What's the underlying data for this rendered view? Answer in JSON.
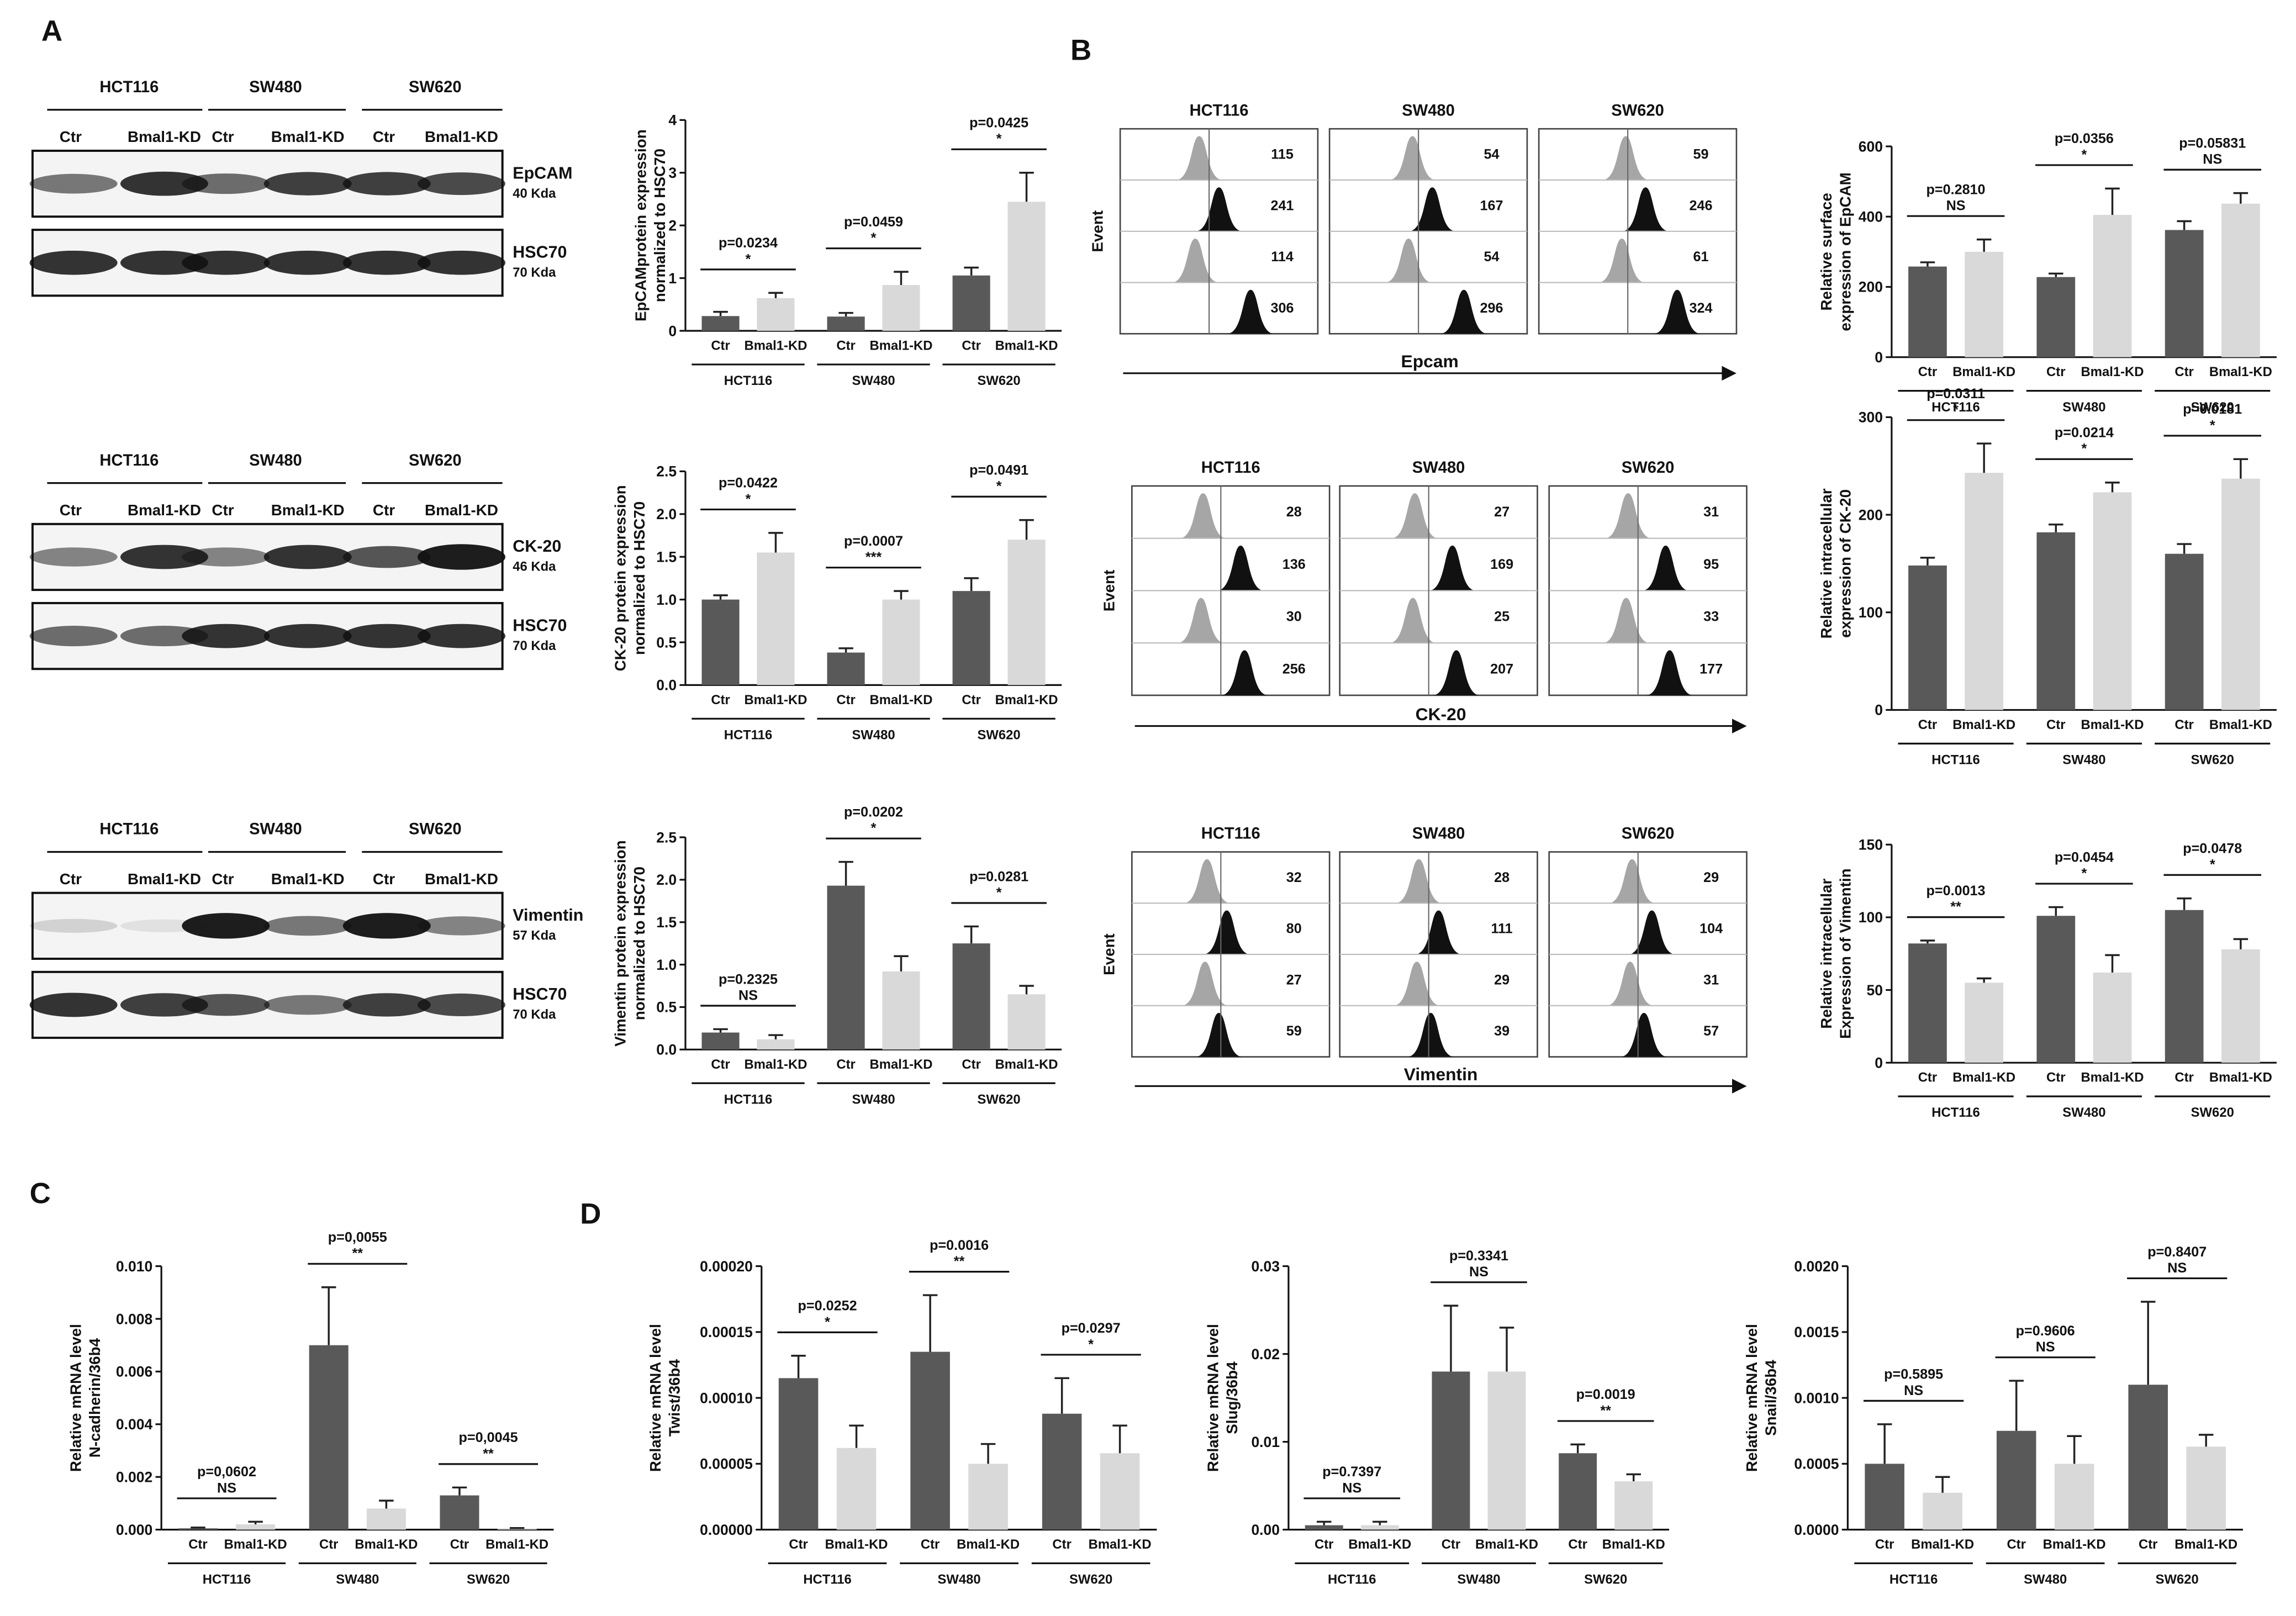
{
  "panel_labels": [
    "A",
    "B",
    "C",
    "D"
  ],
  "blots": [
    {
      "groups": [
        "HCT116",
        "SW480",
        "SW620"
      ],
      "lanes": [
        "Ctr",
        "Bmal1-KD",
        "Ctr",
        "Bmal1-KD",
        "Ctr",
        "Bmal1-KD"
      ],
      "rows": [
        {
          "protein": "EpCAM",
          "size": "40 Kda"
        },
        {
          "protein": "HSC70",
          "size": "70 Kda"
        }
      ]
    },
    {
      "groups": [
        "HCT116",
        "SW480",
        "SW620"
      ],
      "lanes": [
        "Ctr",
        "Bmal1-KD",
        "Ctr",
        "Bmal1-KD",
        "Ctr",
        "Bmal1-KD"
      ],
      "rows": [
        {
          "protein": "CK-20",
          "size": "46 Kda"
        },
        {
          "protein": "HSC70",
          "size": "70 Kda"
        }
      ]
    },
    {
      "groups": [
        "HCT116",
        "SW480",
        "SW620"
      ],
      "lanes": [
        "Ctr",
        "Bmal1-KD",
        "Ctr",
        "Bmal1-KD",
        "Ctr",
        "Bmal1-KD"
      ],
      "rows": [
        {
          "protein": "Vimentin",
          "size": "57 Kda"
        },
        {
          "protein": "HSC70",
          "size": "70 Kda"
        }
      ]
    }
  ],
  "flow": [
    {
      "groups": [
        "HCT116",
        "SW480",
        "SW620"
      ],
      "ylabel": "Event",
      "xlabel": "Epcam",
      "numbers": [
        [
          115,
          241,
          114,
          306
        ],
        [
          54,
          167,
          54,
          296
        ],
        [
          59,
          246,
          61,
          324
        ]
      ]
    },
    {
      "groups": [
        "HCT116",
        "SW480",
        "SW620"
      ],
      "ylabel": "Event",
      "xlabel": "CK-20",
      "numbers": [
        [
          28,
          136,
          30,
          256
        ],
        [
          27,
          169,
          25,
          207
        ],
        [
          31,
          95,
          33,
          177
        ]
      ]
    },
    {
      "groups": [
        "HCT116",
        "SW480",
        "SW620"
      ],
      "ylabel": "Event",
      "xlabel": "Vimentin",
      "numbers": [
        [
          32,
          80,
          27,
          59
        ],
        [
          28,
          111,
          29,
          39
        ],
        [
          29,
          104,
          31,
          57
        ]
      ]
    }
  ],
  "chart_data": [
    {
      "type": "bar",
      "ylabel": [
        "EpCAMprotein expression",
        "normalized to HSC70"
      ],
      "categories": [
        "Ctr",
        "Bmal1-KD",
        "Ctr",
        "Bmal1-KD",
        "Ctr",
        "Bmal1-KD"
      ],
      "groups": [
        "HCT116",
        "SW480",
        "SW620"
      ],
      "values": [
        0.28,
        0.62,
        0.27,
        0.87,
        1.05,
        2.45
      ],
      "errors": [
        0.08,
        0.1,
        0.07,
        0.25,
        0.15,
        0.55
      ],
      "colors": [
        "#595959",
        "#d9d9d9"
      ],
      "ylim": [
        0,
        4
      ],
      "yticks": [
        0,
        1,
        2,
        3,
        4
      ],
      "annotations": [
        {
          "p": "p=0.0234",
          "sig": "*"
        },
        {
          "p": "p=0.0459",
          "sig": "*"
        },
        {
          "p": "p=0.0425",
          "sig": "*"
        }
      ]
    },
    {
      "type": "bar",
      "ylabel": [
        "CK-20 protein expression",
        "normalized to HSC70"
      ],
      "categories": [
        "Ctr",
        "Bmal1-KD",
        "Ctr",
        "Bmal1-KD",
        "Ctr",
        "Bmal1-KD"
      ],
      "groups": [
        "HCT116",
        "SW480",
        "SW620"
      ],
      "values": [
        1.0,
        1.55,
        0.38,
        1.0,
        1.1,
        1.7
      ],
      "errors": [
        0.05,
        0.23,
        0.05,
        0.1,
        0.15,
        0.23
      ],
      "colors": [
        "#595959",
        "#d9d9d9"
      ],
      "ylim": [
        0,
        2.5
      ],
      "yticks": [
        {
          "value": 0,
          "label": "0.0"
        },
        {
          "value": 0.5,
          "label": "0.5"
        },
        {
          "value": 1,
          "label": "1.0"
        },
        {
          "value": 1.5,
          "label": "1.5"
        },
        {
          "value": 2,
          "label": "2.0"
        },
        {
          "value": 2.5,
          "label": "2.5"
        }
      ],
      "annotations": [
        {
          "p": "p=0.0422",
          "sig": "*"
        },
        {
          "p": "p=0.0007",
          "sig": "***"
        },
        {
          "p": "p=0.0491",
          "sig": "*"
        }
      ]
    },
    {
      "type": "bar",
      "ylabel": [
        "Vimentin protein expression",
        "normalized to HSC70"
      ],
      "categories": [
        "Ctr",
        "Bmal1-KD",
        "Ctr",
        "Bmal1-KD",
        "Ctr",
        "Bmal1-KD"
      ],
      "groups": [
        "HCT116",
        "SW480",
        "SW620"
      ],
      "values": [
        0.2,
        0.12,
        1.93,
        0.92,
        1.25,
        0.65
      ],
      "errors": [
        0.04,
        0.05,
        0.28,
        0.18,
        0.2,
        0.1
      ],
      "colors": [
        "#595959",
        "#d9d9d9"
      ],
      "ylim": [
        0,
        2.5
      ],
      "yticks": [
        {
          "value": 0,
          "label": "0.0"
        },
        {
          "value": 0.5,
          "label": "0.5"
        },
        {
          "value": 1,
          "label": "1.0"
        },
        {
          "value": 1.5,
          "label": "1.5"
        },
        {
          "value": 2,
          "label": "2.0"
        },
        {
          "value": 2.5,
          "label": "2.5"
        }
      ],
      "annotations": [
        {
          "p": "p=0.2325",
          "sig": "NS"
        },
        {
          "p": "p=0.0202",
          "sig": "*"
        },
        {
          "p": "p=0.0281",
          "sig": "*"
        }
      ]
    },
    {
      "type": "bar",
      "ylabel": [
        "Relative surface",
        "expression of EpCAM"
      ],
      "categories": [
        "Ctr",
        "Bmal1-KD",
        "Ctr",
        "Bmal1-KD",
        "Ctr",
        "Bmal1-KD"
      ],
      "groups": [
        "HCT116",
        "SW480",
        "SW620"
      ],
      "values": [
        258,
        300,
        228,
        405,
        362,
        437
      ],
      "errors": [
        12,
        35,
        10,
        75,
        25,
        30
      ],
      "colors": [
        "#595959",
        "#d9d9d9"
      ],
      "ylim": [
        0,
        600
      ],
      "yticks": [
        0,
        200,
        400,
        600
      ],
      "annotations": [
        {
          "p": "p=0.2810",
          "sig": "NS"
        },
        {
          "p": "p=0.0356",
          "sig": "*"
        },
        {
          "p": "p=0.05831",
          "sig": "NS"
        }
      ]
    },
    {
      "type": "bar",
      "ylabel": [
        "Relative intracellular",
        "expression of CK-20"
      ],
      "categories": [
        "Ctr",
        "Bmal1-KD",
        "Ctr",
        "Bmal1-KD",
        "Ctr",
        "Bmal1-KD"
      ],
      "groups": [
        "HCT116",
        "SW480",
        "SW620"
      ],
      "values": [
        148,
        243,
        182,
        223,
        160,
        237
      ],
      "errors": [
        8,
        30,
        8,
        10,
        10,
        20
      ],
      "colors": [
        "#595959",
        "#d9d9d9"
      ],
      "ylim": [
        0,
        300
      ],
      "yticks": [
        0,
        100,
        200,
        300
      ],
      "annotations": [
        {
          "p": "p=0.0311",
          "sig": "*"
        },
        {
          "p": "p=0.0214",
          "sig": "*"
        },
        {
          "p": "p=0.0181",
          "sig": "*"
        }
      ]
    },
    {
      "type": "bar",
      "ylabel": [
        "Relative intracellular",
        "Expression of Vimentin"
      ],
      "categories": [
        "Ctr",
        "Bmal1-KD",
        "Ctr",
        "Bmal1-KD",
        "Ctr",
        "Bmal1-KD"
      ],
      "groups": [
        "HCT116",
        "SW480",
        "SW620"
      ],
      "values": [
        82,
        55,
        101,
        62,
        105,
        78
      ],
      "errors": [
        2,
        3,
        6,
        12,
        8,
        7
      ],
      "colors": [
        "#595959",
        "#d9d9d9"
      ],
      "ylim": [
        0,
        150
      ],
      "yticks": [
        0,
        50,
        100,
        150
      ],
      "annotations": [
        {
          "p": "p=0.0013",
          "sig": "**"
        },
        {
          "p": "p=0.0454",
          "sig": "*"
        },
        {
          "p": "p=0.0478",
          "sig": "*"
        }
      ]
    },
    {
      "type": "bar",
      "ylabel": [
        "Relative mRNA level",
        "N-cadherin/36b4"
      ],
      "categories": [
        "Ctr",
        "Bmal1-KD",
        "Ctr",
        "Bmal1-KD",
        "Ctr",
        "Bmal1-KD"
      ],
      "groups": [
        "HCT116",
        "SW480",
        "SW620"
      ],
      "values": [
        5e-05,
        0.0002,
        0.007,
        0.0008,
        0.0013,
        3e-05
      ],
      "errors": [
        3e-05,
        0.0001,
        0.0022,
        0.0003,
        0.0003,
        3e-05
      ],
      "colors": [
        "#595959",
        "#d9d9d9"
      ],
      "ylim": [
        0,
        0.01
      ],
      "yticks": [
        {
          "value": 0,
          "label": "0.000"
        },
        {
          "value": 0.002,
          "label": "0.002"
        },
        {
          "value": 0.004,
          "label": "0.004"
        },
        {
          "value": 0.006,
          "label": "0.006"
        },
        {
          "value": 0.008,
          "label": "0.008"
        },
        {
          "value": 0.01,
          "label": "0.010"
        }
      ],
      "annotations": [
        {
          "p": "p=0,0602",
          "sig": "NS"
        },
        {
          "p": "p=0,0055",
          "sig": "**"
        },
        {
          "p": "p=0,0045",
          "sig": "**"
        }
      ]
    },
    {
      "type": "bar",
      "ylabel": [
        "Relative mRNA level",
        "Twist/36b4"
      ],
      "categories": [
        "Ctr",
        "Bmal1-KD",
        "Ctr",
        "Bmal1-KD",
        "Ctr",
        "Bmal1-KD"
      ],
      "groups": [
        "HCT116",
        "SW480",
        "SW620"
      ],
      "values": [
        0.000115,
        6.2e-05,
        0.000135,
        5e-05,
        8.8e-05,
        5.8e-05
      ],
      "errors": [
        1.7e-05,
        1.7e-05,
        4.3e-05,
        1.5e-05,
        2.7e-05,
        2.1e-05
      ],
      "colors": [
        "#595959",
        "#d9d9d9"
      ],
      "ylim": [
        0,
        0.0002
      ],
      "yticks": [
        {
          "value": 0,
          "label": "0.00000"
        },
        {
          "value": 5e-05,
          "label": "0.00005"
        },
        {
          "value": 0.0001,
          "label": "0.00010"
        },
        {
          "value": 0.00015,
          "label": "0.00015"
        },
        {
          "value": 0.0002,
          "label": "0.00020"
        }
      ],
      "annotations": [
        {
          "p": "p=0.0252",
          "sig": "*"
        },
        {
          "p": "p=0.0016",
          "sig": "**"
        },
        {
          "p": "p=0.0297",
          "sig": "*"
        }
      ]
    },
    {
      "type": "bar",
      "ylabel": [
        "Relative mRNA level",
        "Slug/36b4"
      ],
      "categories": [
        "Ctr",
        "Bmal1-KD",
        "Ctr",
        "Bmal1-KD",
        "Ctr",
        "Bmal1-KD"
      ],
      "groups": [
        "HCT116",
        "SW480",
        "SW620"
      ],
      "values": [
        0.0005,
        0.0005,
        0.018,
        0.018,
        0.0087,
        0.0055
      ],
      "errors": [
        0.0004,
        0.0004,
        0.0075,
        0.005,
        0.001,
        0.0008
      ],
      "colors": [
        "#595959",
        "#d9d9d9"
      ],
      "ylim": [
        0,
        0.03
      ],
      "yticks": [
        {
          "value": 0,
          "label": "0.00"
        },
        {
          "value": 0.01,
          "label": "0.01"
        },
        {
          "value": 0.02,
          "label": "0.02"
        },
        {
          "value": 0.03,
          "label": "0.03"
        }
      ],
      "annotations": [
        {
          "p": "p=0.7397",
          "sig": "NS"
        },
        {
          "p": "p=0.3341",
          "sig": "NS"
        },
        {
          "p": "p=0.0019",
          "sig": "**"
        }
      ]
    },
    {
      "type": "bar",
      "ylabel": [
        "Relative mRNA level",
        "Snail/36b4"
      ],
      "categories": [
        "Ctr",
        "Bmal1-KD",
        "Ctr",
        "Bmal1-KD",
        "Ctr",
        "Bmal1-KD"
      ],
      "groups": [
        "HCT116",
        "SW480",
        "SW620"
      ],
      "values": [
        0.0005,
        0.00028,
        0.00075,
        0.0005,
        0.0011,
        0.00063
      ],
      "errors": [
        0.0003,
        0.00012,
        0.00038,
        0.00021,
        0.00063,
        9e-05
      ],
      "colors": [
        "#595959",
        "#d9d9d9"
      ],
      "ylim": [
        0,
        0.002
      ],
      "yticks": [
        {
          "value": 0,
          "label": "0.0000"
        },
        {
          "value": 0.0005,
          "label": "0.0005"
        },
        {
          "value": 0.001,
          "label": "0.0010"
        },
        {
          "value": 0.0015,
          "label": "0.0015"
        },
        {
          "value": 0.002,
          "label": "0.0020"
        }
      ],
      "annotations": [
        {
          "p": "p=0.5895",
          "sig": "NS"
        },
        {
          "p": "p=0.9606",
          "sig": "NS"
        },
        {
          "p": "p=0.8407",
          "sig": "NS"
        }
      ]
    }
  ]
}
